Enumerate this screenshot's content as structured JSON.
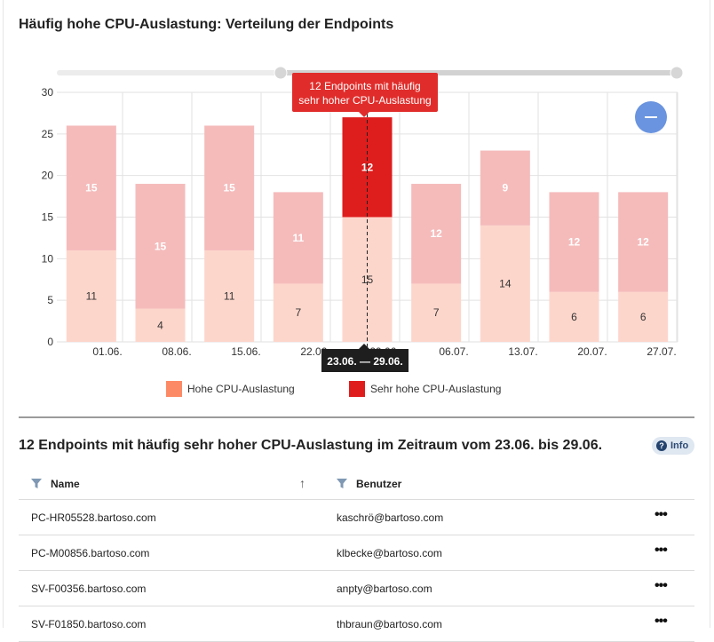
{
  "chart_title": "Häufig hohe CPU-Auslastung: Verteilung der Endpoints",
  "chart_data": {
    "type": "bar",
    "stacked": true,
    "title": "Häufig hohe CPU-Auslastung: Verteilung der Endpoints",
    "ylim": [
      0,
      30
    ],
    "yticks": [
      0,
      5,
      10,
      15,
      20,
      25,
      30
    ],
    "xticks": [
      "01.06.",
      "08.06.",
      "15.06.",
      "22.06.",
      "29.06.",
      "06.07.",
      "13.07.",
      "20.07.",
      "27.07."
    ],
    "grid": true,
    "legend_position": "bottom",
    "series": [
      {
        "name": "Hohe CPU-Auslastung",
        "color": "#fd8a67",
        "values": [
          11,
          4,
          11,
          7,
          15,
          7,
          14,
          6,
          6
        ]
      },
      {
        "name": "Sehr hohe CPU-Auslastung",
        "color": "#e01d1d",
        "values": [
          15,
          15,
          15,
          11,
          12,
          12,
          9,
          12,
          12
        ]
      }
    ],
    "selected_index": 4,
    "tooltip": "12 Endpoints mit häufig sehr hoher CPU-Auslastung",
    "crosshair_label": "23.06. — 29.06."
  },
  "legend": [
    {
      "label": "Hohe CPU-Auslastung",
      "color": "#fd8a67"
    },
    {
      "label": "Sehr hohe CPU-Auslastung",
      "color": "#e01d1d"
    }
  ],
  "zoom_button": {
    "icon": "minus-icon",
    "color": "#6a94df"
  },
  "table": {
    "title": "12 Endpoints mit häufig sehr hoher CPU-Auslastung im Zeitraum vom 23.06. bis 29.06.",
    "info_label": "Info",
    "columns": {
      "name": "Name",
      "user": "Benutzer"
    },
    "rows": [
      {
        "name": "PC-HR05528.bartoso.com",
        "user": "kaschrö@bartoso.com"
      },
      {
        "name": "PC-M00856.bartoso.com",
        "user": "klbecke@bartoso.com"
      },
      {
        "name": "SV-F00356.bartoso.com",
        "user": "anpty@bartoso.com"
      },
      {
        "name": "SV-F01850.bartoso.com",
        "user": "thbraun@bartoso.com"
      }
    ],
    "more_label": "•••"
  }
}
